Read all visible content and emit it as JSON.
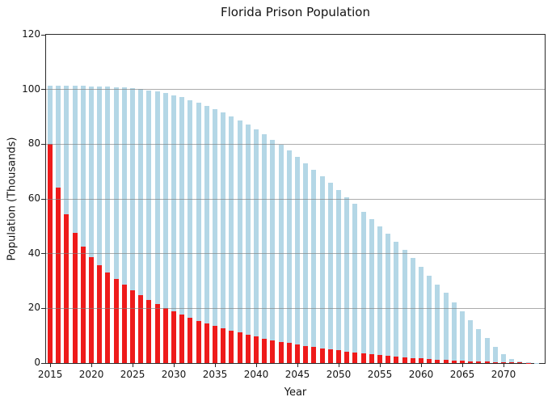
{
  "chart_data": {
    "type": "bar",
    "title": "Florida Prison Population",
    "xlabel": "Year",
    "ylabel": "Population (Thousands)",
    "xlim": [
      2014.5,
      2075.0
    ],
    "ylim": [
      0,
      120
    ],
    "yticks": [
      0,
      20,
      40,
      60,
      80,
      100,
      120
    ],
    "xticks": [
      2015,
      2020,
      2025,
      2030,
      2035,
      2040,
      2045,
      2050,
      2055,
      2060,
      2065,
      2070
    ],
    "grid": "horizontal gridlines at y ticks, gray, drawn over bars",
    "legend": "none",
    "bar_layout": "two overlaid series per year: red bars drawn in front of light-blue bars at the same x position",
    "years": [
      2015,
      2016,
      2017,
      2018,
      2019,
      2020,
      2021,
      2022,
      2023,
      2024,
      2025,
      2026,
      2027,
      2028,
      2029,
      2030,
      2031,
      2032,
      2033,
      2034,
      2035,
      2036,
      2037,
      2038,
      2039,
      2040,
      2041,
      2042,
      2043,
      2044,
      2045,
      2046,
      2047,
      2048,
      2049,
      2050,
      2051,
      2052,
      2053,
      2054,
      2055,
      2056,
      2057,
      2058,
      2059,
      2060,
      2061,
      2062,
      2063,
      2064,
      2065,
      2066,
      2067,
      2068,
      2069,
      2070,
      2071,
      2072,
      2073,
      2074
    ],
    "series": [
      {
        "name": "light_blue_total",
        "color": "#b4d7e6",
        "values": [
          101.5,
          101.4,
          101.4,
          101.3,
          101.3,
          101.2,
          101.1,
          101.0,
          100.9,
          100.7,
          100.4,
          100.1,
          99.7,
          99.2,
          98.6,
          97.9,
          97.1,
          96.2,
          95.2,
          94.1,
          92.9,
          91.6,
          90.2,
          88.7,
          87.1,
          85.4,
          83.6,
          81.7,
          79.7,
          77.6,
          75.4,
          73.1,
          70.7,
          68.3,
          65.8,
          63.3,
          60.7,
          58.1,
          55.4,
          52.7,
          50.0,
          47.2,
          44.3,
          41.3,
          38.3,
          35.2,
          32.0,
          28.8,
          25.6,
          22.3,
          19.0,
          15.7,
          12.4,
          9.2,
          5.9,
          3.3,
          1.5,
          0.6,
          0.2,
          0.05
        ]
      },
      {
        "name": "red_overlay",
        "color": "#ee1b1b",
        "values": [
          80.0,
          64.0,
          54.5,
          47.5,
          42.5,
          38.8,
          35.8,
          33.2,
          30.8,
          28.6,
          26.6,
          24.8,
          23.1,
          21.6,
          20.2,
          18.9,
          17.7,
          16.6,
          15.5,
          14.5,
          13.6,
          12.7,
          11.9,
          11.1,
          10.4,
          9.7,
          9.0,
          8.4,
          7.8,
          7.3,
          6.8,
          6.3,
          5.8,
          5.4,
          5.0,
          4.6,
          4.2,
          3.9,
          3.5,
          3.2,
          2.9,
          2.6,
          2.4,
          2.1,
          1.9,
          1.7,
          1.5,
          1.3,
          1.1,
          1.0,
          0.8,
          0.7,
          0.6,
          0.5,
          0.4,
          0.3,
          0.25,
          0.2,
          0.1,
          0.0
        ]
      }
    ],
    "colors": {
      "background": "#ffffff",
      "gridline": "#808080",
      "spine": "#2a2a2a",
      "text": "#141414"
    }
  }
}
